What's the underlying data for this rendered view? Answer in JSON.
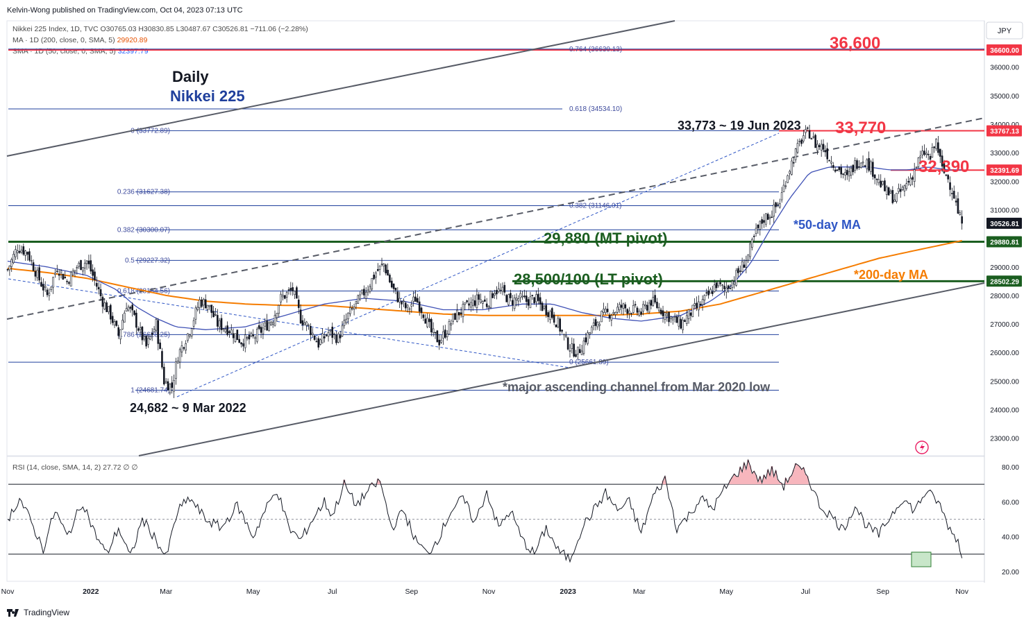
{
  "header": {
    "publisher": "Kelvin-Wong published on TradingView.com, Oct 04, 2023 07:13 UTC"
  },
  "legend": {
    "ohlc": "Nikkei 225 Index, 1D, TVC  O30765.03  H30830.85  L30487.67  C30526.81  −711.06 (−2.28%)",
    "ma200_label": "MA · 1D (200, close, 0, SMA, 5)",
    "ma200_value": "29920.89",
    "sma50_label": "SMA · 1D (50, close, 0, SMA, 5)",
    "sma50_value": "32397.79",
    "rsi": "RSI (14, close, SMA, 14, 2)  27.72  ∅  ∅"
  },
  "currency": "JPY",
  "footer": {
    "brand": "TradingView"
  },
  "colors": {
    "red": "#f23645",
    "green": "#1b5e20",
    "orange": "#f57c00",
    "blue": "#2962ff",
    "navy": "#1f3f9c",
    "gray": "#575b66"
  },
  "chart_data": {
    "type": "candlestick",
    "title": "Nikkei 225 Index — Daily",
    "subtitle_daily": "Daily",
    "subtitle_index": "Nikkei 225",
    "price_axis": {
      "ylim": [
        22700,
        37500
      ],
      "ticks": [
        "36000.00",
        "35000.00",
        "34000.00",
        "33000.00",
        "32000.00",
        "31000.00",
        "30000.00",
        "29000.00",
        "28000.00",
        "27000.00",
        "26000.00",
        "25000.00",
        "24000.00",
        "23000.00"
      ],
      "tick_values": [
        36000,
        35000,
        34000,
        33000,
        32000,
        31000,
        30000,
        29000,
        28000,
        27000,
        26000,
        25000,
        24000,
        23000
      ]
    },
    "time_axis": {
      "labels": [
        "Nov",
        "2022",
        "Mar",
        "May",
        "Jul",
        "Sep",
        "Nov",
        "2023",
        "Mar",
        "May",
        "Jul",
        "Sep",
        "Nov"
      ],
      "t_index": [
        0,
        42,
        80,
        124,
        164,
        204,
        243,
        283,
        319,
        363,
        403,
        442,
        482
      ]
    },
    "price_tags": [
      {
        "label": "36600.00",
        "value": 36600,
        "color": "#f23645"
      },
      {
        "label": "33767.13",
        "value": 33767,
        "color": "#f23645"
      },
      {
        "label": "32391.69",
        "value": 32392,
        "color": "#f23645"
      },
      {
        "label": "30526.81",
        "value": 30527,
        "color": "#131722"
      },
      {
        "label": "29880.81",
        "value": 29881,
        "color": "#1b5e20"
      },
      {
        "label": "28502.29",
        "value": 28502,
        "color": "#1b5e20"
      }
    ],
    "key_levels": [
      {
        "label": "36,600",
        "value": 36600,
        "color": "#f23645"
      },
      {
        "label": "33,770",
        "value": 33770,
        "color": "#f23645"
      },
      {
        "label": "32,390",
        "value": 32390,
        "color": "#f23645"
      },
      {
        "label": "29,880 (MT pivot)",
        "value": 29880,
        "color": "#1b5e20"
      },
      {
        "label": "28,500/100 (LT pivot)",
        "value": 28500,
        "color": "#1b5e20"
      }
    ],
    "fib_retracement_1": [
      {
        "label": "0 (33772.89)",
        "value": 33772.89
      },
      {
        "label": "0.236 (31627.38)",
        "value": 31627.38
      },
      {
        "label": "0.382 (30300.07)",
        "value": 30300.07
      },
      {
        "label": "0.5 (29227.32)",
        "value": 29227.32
      },
      {
        "label": "0.618 (28154.56)",
        "value": 28154.56
      },
      {
        "label": "0.786 (26628.25)",
        "value": 26628.25
      },
      {
        "label": "1 (24681.74)",
        "value": 24681.74
      }
    ],
    "fib_extension_2": [
      {
        "label": "0.764 (36630.13)",
        "value": 36630.13
      },
      {
        "label": "0.618 (34534.10)",
        "value": 34534.1
      },
      {
        "label": "0.382 (31146.01)",
        "value": 31146.01
      },
      {
        "label": "0 (25661.89)",
        "value": 25661.89
      }
    ],
    "annotations": {
      "high": "33,773 ~ 19 Jun 2023",
      "low": "24,682 ~ 9 Mar 2022",
      "channel": "*major ascending channel from Mar 2020 low",
      "ma50": "*50-day MA",
      "ma200": "*200-day MA"
    },
    "close_anchors": [
      [
        0,
        28900
      ],
      [
        5,
        29700
      ],
      [
        10,
        29500
      ],
      [
        15,
        28700
      ],
      [
        20,
        28000
      ],
      [
        25,
        29000
      ],
      [
        30,
        28500
      ],
      [
        35,
        29000
      ],
      [
        40,
        29200
      ],
      [
        43,
        28700
      ],
      [
        48,
        27800
      ],
      [
        52,
        27300
      ],
      [
        56,
        26600
      ],
      [
        60,
        27700
      ],
      [
        64,
        27200
      ],
      [
        70,
        26200
      ],
      [
        75,
        27000
      ],
      [
        79,
        25000
      ],
      [
        83,
        24800
      ],
      [
        86,
        25900
      ],
      [
        92,
        26800
      ],
      [
        97,
        27800
      ],
      [
        101,
        27700
      ],
      [
        106,
        27000
      ],
      [
        112,
        26800
      ],
      [
        118,
        26400
      ],
      [
        124,
        26500
      ],
      [
        130,
        26900
      ],
      [
        134,
        27200
      ],
      [
        138,
        27900
      ],
      [
        144,
        28200
      ],
      [
        148,
        27200
      ],
      [
        152,
        26900
      ],
      [
        157,
        26300
      ],
      [
        162,
        26700
      ],
      [
        167,
        26500
      ],
      [
        172,
        27300
      ],
      [
        178,
        27900
      ],
      [
        182,
        28300
      ],
      [
        186,
        28800
      ],
      [
        190,
        29100
      ],
      [
        194,
        28300
      ],
      [
        198,
        27800
      ],
      [
        202,
        27500
      ],
      [
        206,
        27900
      ],
      [
        210,
        27400
      ],
      [
        214,
        26700
      ],
      [
        218,
        26400
      ],
      [
        222,
        26800
      ],
      [
        226,
        27300
      ],
      [
        232,
        27600
      ],
      [
        238,
        27900
      ],
      [
        242,
        27700
      ],
      [
        246,
        28200
      ],
      [
        250,
        28100
      ],
      [
        254,
        27800
      ],
      [
        258,
        27900
      ],
      [
        262,
        27800
      ],
      [
        266,
        27900
      ],
      [
        270,
        27600
      ],
      [
        274,
        27400
      ],
      [
        278,
        27000
      ],
      [
        282,
        26400
      ],
      [
        285,
        26100
      ],
      [
        288,
        26000
      ],
      [
        292,
        26500
      ],
      [
        296,
        26900
      ],
      [
        300,
        27300
      ],
      [
        305,
        27400
      ],
      [
        310,
        27600
      ],
      [
        315,
        27500
      ],
      [
        320,
        27400
      ],
      [
        325,
        27800
      ],
      [
        330,
        27500
      ],
      [
        335,
        27200
      ],
      [
        340,
        27000
      ],
      [
        345,
        27400
      ],
      [
        350,
        27700
      ],
      [
        354,
        28000
      ],
      [
        358,
        28400
      ],
      [
        362,
        28200
      ],
      [
        366,
        28500
      ],
      [
        370,
        28900
      ],
      [
        374,
        29400
      ],
      [
        378,
        30200
      ],
      [
        382,
        30700
      ],
      [
        386,
        30900
      ],
      [
        390,
        31300
      ],
      [
        394,
        32300
      ],
      [
        398,
        33000
      ],
      [
        402,
        33600
      ],
      [
        405,
        33700
      ],
      [
        408,
        33300
      ],
      [
        412,
        33200
      ],
      [
        416,
        32700
      ],
      [
        420,
        32400
      ],
      [
        424,
        32100
      ],
      [
        428,
        32600
      ],
      [
        432,
        32800
      ],
      [
        436,
        32500
      ],
      [
        440,
        32000
      ],
      [
        444,
        31600
      ],
      [
        448,
        31400
      ],
      [
        452,
        31700
      ],
      [
        456,
        32100
      ],
      [
        460,
        32700
      ],
      [
        463,
        33000
      ],
      [
        466,
        32800
      ],
      [
        469,
        33400
      ],
      [
        472,
        32400
      ],
      [
        475,
        32100
      ],
      [
        478,
        31500
      ],
      [
        480,
        30900
      ],
      [
        482,
        30527
      ]
    ],
    "sma50_anchors": [
      [
        0,
        29200
      ],
      [
        20,
        29000
      ],
      [
        40,
        28700
      ],
      [
        55,
        28200
      ],
      [
        65,
        27600
      ],
      [
        75,
        27200
      ],
      [
        85,
        26900
      ],
      [
        100,
        26800
      ],
      [
        120,
        26900
      ],
      [
        140,
        27300
      ],
      [
        160,
        27700
      ],
      [
        180,
        27900
      ],
      [
        200,
        27800
      ],
      [
        220,
        27500
      ],
      [
        240,
        27500
      ],
      [
        260,
        27700
      ],
      [
        275,
        27700
      ],
      [
        290,
        27400
      ],
      [
        305,
        27200
      ],
      [
        320,
        27100
      ],
      [
        340,
        27300
      ],
      [
        355,
        27800
      ],
      [
        365,
        28300
      ],
      [
        375,
        29100
      ],
      [
        385,
        30300
      ],
      [
        395,
        31400
      ],
      [
        405,
        32300
      ],
      [
        415,
        32500
      ],
      [
        425,
        32500
      ],
      [
        435,
        32500
      ],
      [
        445,
        32400
      ],
      [
        455,
        32400
      ],
      [
        465,
        32500
      ],
      [
        475,
        32400
      ],
      [
        482,
        32398
      ]
    ],
    "ma200_anchors": [
      [
        0,
        28950
      ],
      [
        20,
        28800
      ],
      [
        40,
        28600
      ],
      [
        60,
        28300
      ],
      [
        80,
        28000
      ],
      [
        100,
        27800
      ],
      [
        120,
        27700
      ],
      [
        140,
        27650
      ],
      [
        160,
        27650
      ],
      [
        180,
        27550
      ],
      [
        200,
        27450
      ],
      [
        220,
        27350
      ],
      [
        240,
        27300
      ],
      [
        260,
        27300
      ],
      [
        280,
        27300
      ],
      [
        300,
        27300
      ],
      [
        320,
        27350
      ],
      [
        340,
        27450
      ],
      [
        360,
        27700
      ],
      [
        380,
        28100
      ],
      [
        400,
        28500
      ],
      [
        420,
        28900
      ],
      [
        440,
        29300
      ],
      [
        460,
        29600
      ],
      [
        482,
        29921
      ]
    ],
    "rsi": {
      "ylim": [
        15,
        85
      ],
      "ticks": [
        "80.00",
        "60.00",
        "40.00",
        "20.00"
      ],
      "tick_values": [
        80,
        60,
        40,
        20
      ],
      "overbought": 70,
      "middle": 50,
      "oversold": 30,
      "last": 27.72,
      "anchors": [
        [
          0,
          50
        ],
        [
          6,
          62
        ],
        [
          12,
          48
        ],
        [
          18,
          33
        ],
        [
          24,
          55
        ],
        [
          30,
          40
        ],
        [
          38,
          60
        ],
        [
          44,
          42
        ],
        [
          50,
          30
        ],
        [
          56,
          45
        ],
        [
          62,
          28
        ],
        [
          68,
          50
        ],
        [
          74,
          40
        ],
        [
          80,
          28
        ],
        [
          86,
          55
        ],
        [
          92,
          62
        ],
        [
          100,
          50
        ],
        [
          108,
          45
        ],
        [
          116,
          58
        ],
        [
          124,
          40
        ],
        [
          130,
          55
        ],
        [
          136,
          67
        ],
        [
          142,
          45
        ],
        [
          148,
          38
        ],
        [
          154,
          50
        ],
        [
          160,
          60
        ],
        [
          164,
          52
        ],
        [
          170,
          70
        ],
        [
          176,
          58
        ],
        [
          182,
          66
        ],
        [
          188,
          72
        ],
        [
          194,
          45
        ],
        [
          200,
          55
        ],
        [
          206,
          38
        ],
        [
          212,
          30
        ],
        [
          218,
          40
        ],
        [
          224,
          55
        ],
        [
          230,
          62
        ],
        [
          236,
          48
        ],
        [
          242,
          66
        ],
        [
          248,
          45
        ],
        [
          254,
          55
        ],
        [
          260,
          38
        ],
        [
          266,
          30
        ],
        [
          272,
          45
        ],
        [
          278,
          32
        ],
        [
          284,
          27
        ],
        [
          290,
          45
        ],
        [
          296,
          55
        ],
        [
          302,
          65
        ],
        [
          308,
          55
        ],
        [
          314,
          60
        ],
        [
          320,
          42
        ],
        [
          326,
          63
        ],
        [
          332,
          73
        ],
        [
          338,
          45
        ],
        [
          344,
          52
        ],
        [
          350,
          62
        ],
        [
          356,
          56
        ],
        [
          362,
          67
        ],
        [
          368,
          76
        ],
        [
          374,
          82
        ],
        [
          380,
          72
        ],
        [
          386,
          78
        ],
        [
          392,
          69
        ],
        [
          398,
          80
        ],
        [
          404,
          75
        ],
        [
          410,
          58
        ],
        [
          416,
          52
        ],
        [
          422,
          44
        ],
        [
          428,
          58
        ],
        [
          434,
          46
        ],
        [
          440,
          41
        ],
        [
          446,
          52
        ],
        [
          452,
          62
        ],
        [
          458,
          55
        ],
        [
          464,
          66
        ],
        [
          470,
          60
        ],
        [
          476,
          44
        ],
        [
          480,
          38
        ],
        [
          482,
          27.7
        ]
      ]
    }
  }
}
